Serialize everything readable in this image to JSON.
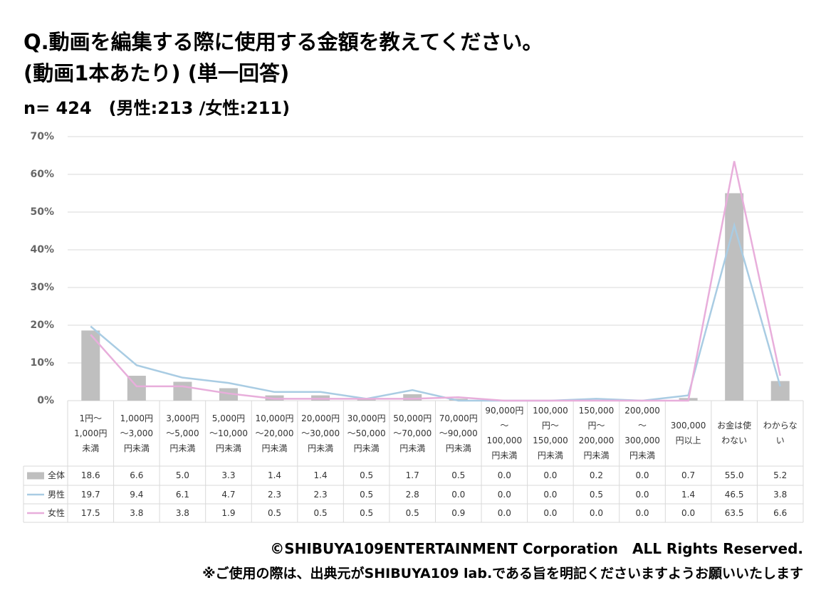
{
  "chart_data": {
    "type": "bar-line",
    "title": "Q.動画を編集する際に使用する金額を教えてください。",
    "subtitle": "(動画1本あたり) (単一回答)",
    "sample": "n= 424　(男性:213 /女性:211)",
    "categories": [
      "1円～\n1,000円\n未満",
      "1,000円\n～3,000\n円未満",
      "3,000円\n～5,000\n円未満",
      "5,000円\n～10,000\n円未満",
      "10,000円\n～20,000\n円未満",
      "20,000円\n～30,000\n円未満",
      "30,000円\n～50,000\n円未満",
      "50,000円\n～70,000\n円未満",
      "70,000円\n～90,000\n円未満",
      "90,000円\n～\n100,000\n円未満",
      "100,000\n円～\n150,000\n円未満",
      "150,000\n円～\n200,000\n円未満",
      "200,000\n～\n300,000\n円未満",
      "300,000\n円以上",
      "お金は使\nわない",
      "わからな\nい"
    ],
    "series": [
      {
        "name": "全体",
        "type": "bar",
        "color": "#bfbfbf",
        "values": [
          18.6,
          6.6,
          5.0,
          3.3,
          1.4,
          1.4,
          0.5,
          1.7,
          0.5,
          0.0,
          0.0,
          0.2,
          0.0,
          0.7,
          55.0,
          5.2
        ],
        "value_labels": [
          "18.6",
          "6.6",
          "5.0",
          "3.3",
          "1.4",
          "1.4",
          "0.5",
          "1.7",
          "0.5",
          "0.0",
          "0.0",
          "0.2",
          "0.0",
          "0.7",
          "55.0",
          "5.2"
        ]
      },
      {
        "name": "男性",
        "type": "line",
        "color": "#a9cce3",
        "values": [
          19.7,
          9.4,
          6.1,
          4.7,
          2.3,
          2.3,
          0.5,
          2.8,
          0.0,
          0.0,
          0.0,
          0.5,
          0.0,
          1.4,
          46.5,
          3.8
        ],
        "value_labels": [
          "19.7",
          "9.4",
          "6.1",
          "4.7",
          "2.3",
          "2.3",
          "0.5",
          "2.8",
          "0.0",
          "0.0",
          "0.0",
          "0.5",
          "0.0",
          "1.4",
          "46.5",
          "3.8"
        ]
      },
      {
        "name": "女性",
        "type": "line",
        "color": "#e8aedb",
        "values": [
          17.5,
          3.8,
          3.8,
          1.9,
          0.5,
          0.5,
          0.5,
          0.5,
          0.9,
          0.0,
          0.0,
          0.0,
          0.0,
          0.0,
          63.5,
          6.6
        ],
        "value_labels": [
          "17.5",
          "3.8",
          "3.8",
          "1.9",
          "0.5",
          "0.5",
          "0.5",
          "0.5",
          "0.9",
          "0.0",
          "0.0",
          "0.0",
          "0.0",
          "0.0",
          "63.5",
          "6.6"
        ]
      }
    ],
    "ylim": [
      0,
      70
    ],
    "yticks": [
      {
        "value": 0,
        "label": "0%"
      },
      {
        "value": 10,
        "label": "10%"
      },
      {
        "value": 20,
        "label": "20%"
      },
      {
        "value": 30,
        "label": "30%"
      },
      {
        "value": 40,
        "label": "40%"
      },
      {
        "value": 50,
        "label": "50%"
      },
      {
        "value": 60,
        "label": "60%"
      },
      {
        "value": 70,
        "label": "70%"
      }
    ],
    "grid": true,
    "footer": [
      "©SHIBUYA109ENTERTAINMENT Corporation　ALL Rights Reserved.",
      "※ご使用の際は、出典元がSHIBUYA109 lab.である旨を明記くださいますようお願いいたします"
    ]
  }
}
